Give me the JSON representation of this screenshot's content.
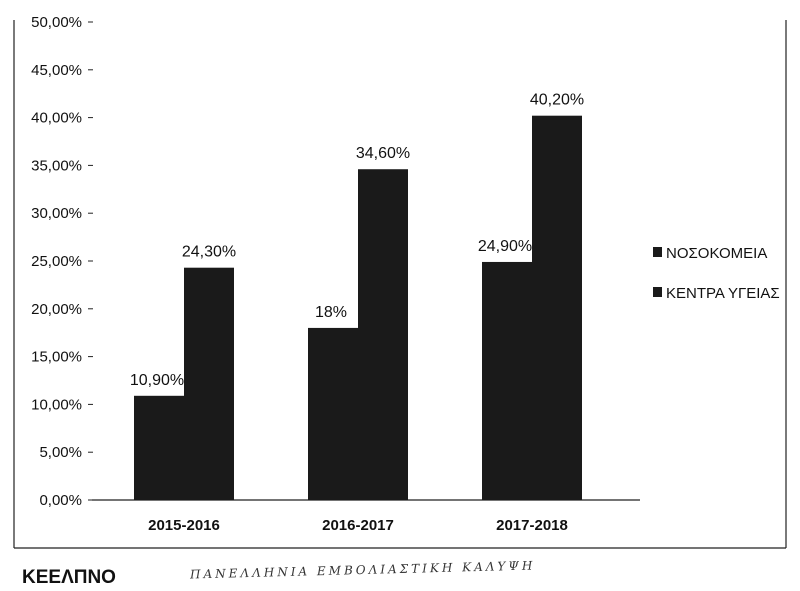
{
  "chart_data": {
    "type": "bar",
    "categories": [
      "2015-2016",
      "2016-2017",
      "2017-2018"
    ],
    "series": [
      {
        "name": "ΝΟΣΟΚΟΜΕΙΑ",
        "values": [
          10.9,
          18,
          24.9
        ],
        "labels": [
          "10,90%",
          "18%",
          "24,90%"
        ]
      },
      {
        "name": "ΚΕΝΤΡΑ ΥΓΕΙΑΣ",
        "values": [
          24.3,
          34.6,
          40.2
        ],
        "labels": [
          "24,30%",
          "34,60%",
          "40,20%"
        ]
      }
    ],
    "y_ticks": [
      0,
      5,
      10,
      15,
      20,
      25,
      30,
      35,
      40,
      45,
      50
    ],
    "y_tick_labels": [
      "0,00%",
      "5,00%",
      "10,00%",
      "15,00%",
      "20,00%",
      "25,00%",
      "30,00%",
      "35,00%",
      "40,00%",
      "45,00%",
      "50,00%"
    ],
    "ylim": [
      0,
      50
    ],
    "grid": false,
    "legend_position": "right",
    "colors": [
      "#1a1a1a",
      "#1a1a1a"
    ]
  },
  "footer": {
    "organization": "ΚΕΕΛΠΝΟ",
    "handwritten_note": "ΠΑΝΕΛΛΗΝΙΑ ΕΜΒΟΛΙΑΣΤΙΚΗ ΚΑΛΥΨΗ"
  }
}
